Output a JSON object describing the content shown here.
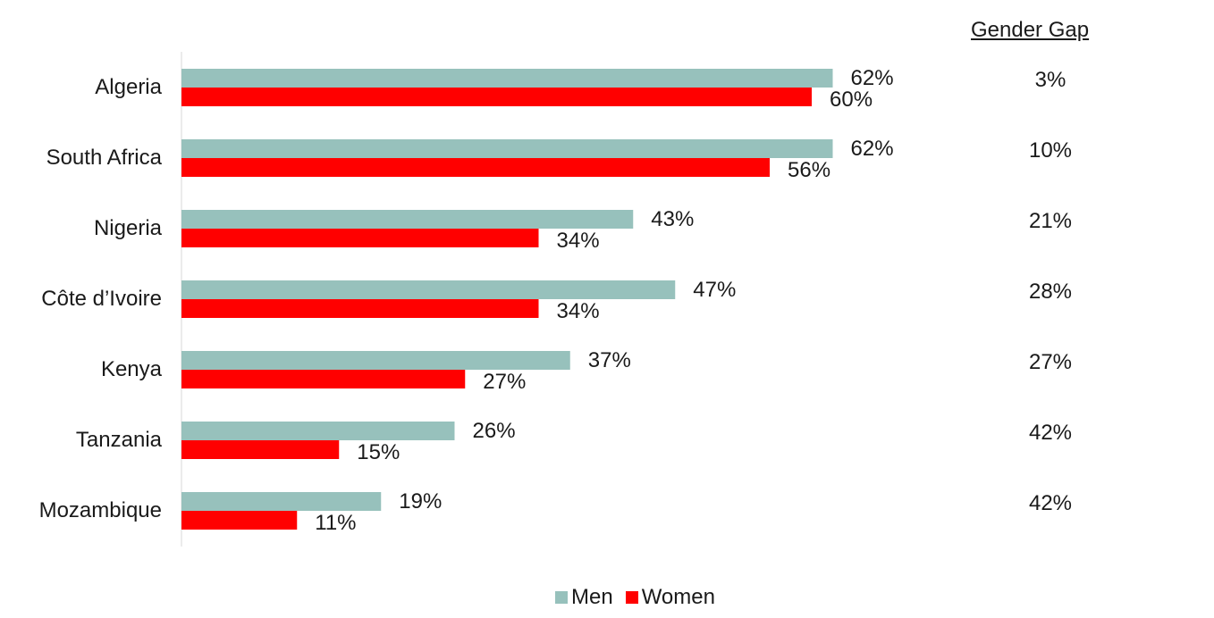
{
  "chart_data": {
    "type": "bar",
    "orientation": "horizontal",
    "categories": [
      "Algeria",
      "South Africa",
      "Nigeria",
      "Côte d’Ivoire",
      "Kenya",
      "Tanzania",
      "Mozambique"
    ],
    "series": [
      {
        "name": "Men",
        "color": "#97c1bc",
        "values": [
          62,
          62,
          43,
          47,
          37,
          26,
          19
        ],
        "labels": [
          "62%",
          "62%",
          "43%",
          "47%",
          "37%",
          "26%",
          "19%"
        ]
      },
      {
        "name": "Women",
        "color": "#ff0000",
        "values": [
          60,
          56,
          34,
          34,
          27,
          15,
          11
        ],
        "labels": [
          "60%",
          "56%",
          "34%",
          "34%",
          "27%",
          "15%",
          "11%"
        ]
      }
    ],
    "gender_gap": {
      "header": "Gender Gap",
      "values": [
        "3%",
        "10%",
        "21%",
        "28%",
        "27%",
        "42%",
        "42%"
      ]
    },
    "xlim": [
      0,
      100
    ],
    "grid": false,
    "legend_position": "bottom"
  }
}
